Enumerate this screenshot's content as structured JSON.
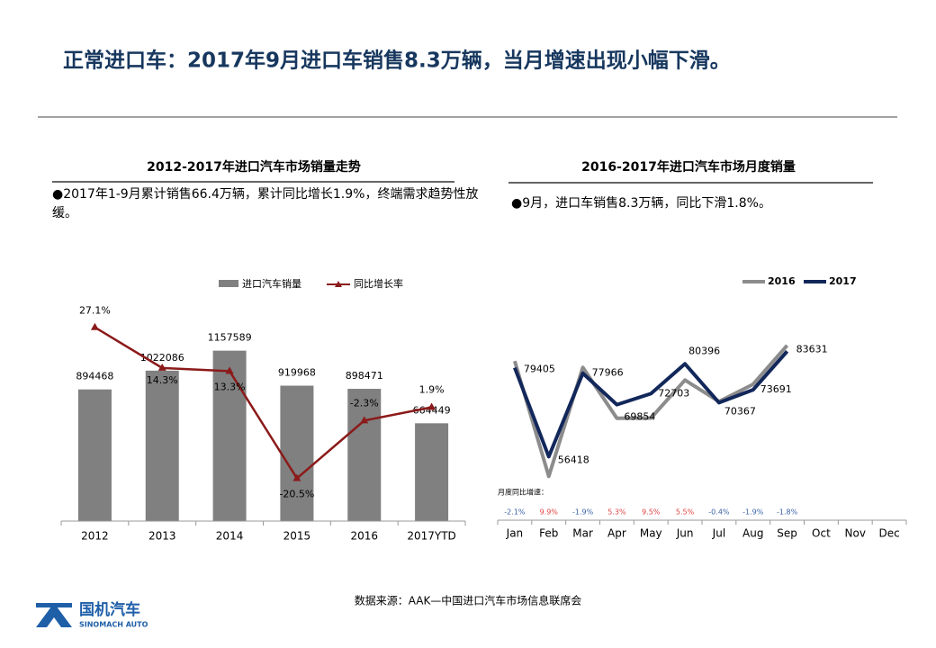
{
  "title": "正常进口车：2017年9月进口车销售8.3万辆，当月增速出现小幅下滑。",
  "chart_data": [
    {
      "type": "bar-line",
      "title": "2012-2017年进口汽车市场销量走势",
      "note": "●2017年1-9月累计销售66.4万辆，累计同比增长1.9%，终端需求趋势性放缓。",
      "categories": [
        "2012",
        "2013",
        "2014",
        "2015",
        "2016",
        "2017YTD"
      ],
      "series": [
        {
          "name": "进口汽车销量",
          "color": "#808080",
          "values": [
            894468,
            1022086,
            1157589,
            919968,
            898471,
            664449
          ]
        },
        {
          "name": "同比增长率",
          "color": "#8b1a1a",
          "axis": "y2",
          "values": [
            27.1,
            14.3,
            13.3,
            -20.5,
            -2.3,
            1.9
          ],
          "value_labels": [
            "27.1%",
            "14.3%",
            "13.3%",
            "-20.5%",
            "-2.3%",
            "1.9%"
          ]
        }
      ],
      "ylim": [
        0,
        1400000
      ],
      "y2lim": [
        -34,
        31
      ],
      "legend": "top"
    },
    {
      "type": "line",
      "title": "2016-2017年进口汽车市场月度销量",
      "note": "●9月，进口车销售8.3万辆，同比下滑1.8%。",
      "categories": [
        "Jan",
        "Feb",
        "Mar",
        "Apr",
        "May",
        "Jun",
        "Jul",
        "Aug",
        "Sep",
        "Oct",
        "Nov",
        "Dec"
      ],
      "series": [
        {
          "name": "2016",
          "color": "#8c8c8c",
          "values": [
            81109,
            51336,
            79476,
            66338,
            66395,
            76205,
            70650,
            75118,
            85164,
            null,
            null,
            null
          ]
        },
        {
          "name": "2017",
          "color": "#12275a",
          "values": [
            79405,
            56418,
            77966,
            69854,
            72703,
            80396,
            70367,
            73691,
            83631,
            null,
            null,
            null
          ],
          "labels": true
        }
      ],
      "growth": {
        "label": "月度同比增速：",
        "values": [
          -2.1,
          9.9,
          -1.9,
          5.3,
          9.5,
          5.5,
          -0.4,
          -1.9,
          -1.8,
          null,
          null,
          null
        ],
        "value_labels": [
          "-2.1%",
          "9.9%",
          "-1.9%",
          "5.3%",
          "9.5%",
          "5.5%",
          "-0.4%",
          "-1.9%",
          "-1.8%",
          null,
          null,
          null
        ]
      },
      "ylim": [
        40000,
        100000
      ],
      "legend": "top-right"
    }
  ],
  "source": "数据来源：AAK—中国进口汽车市场信息联席会",
  "logo": {
    "name": "国机汽车",
    "subtitle": "SINOMACH AUTO"
  }
}
